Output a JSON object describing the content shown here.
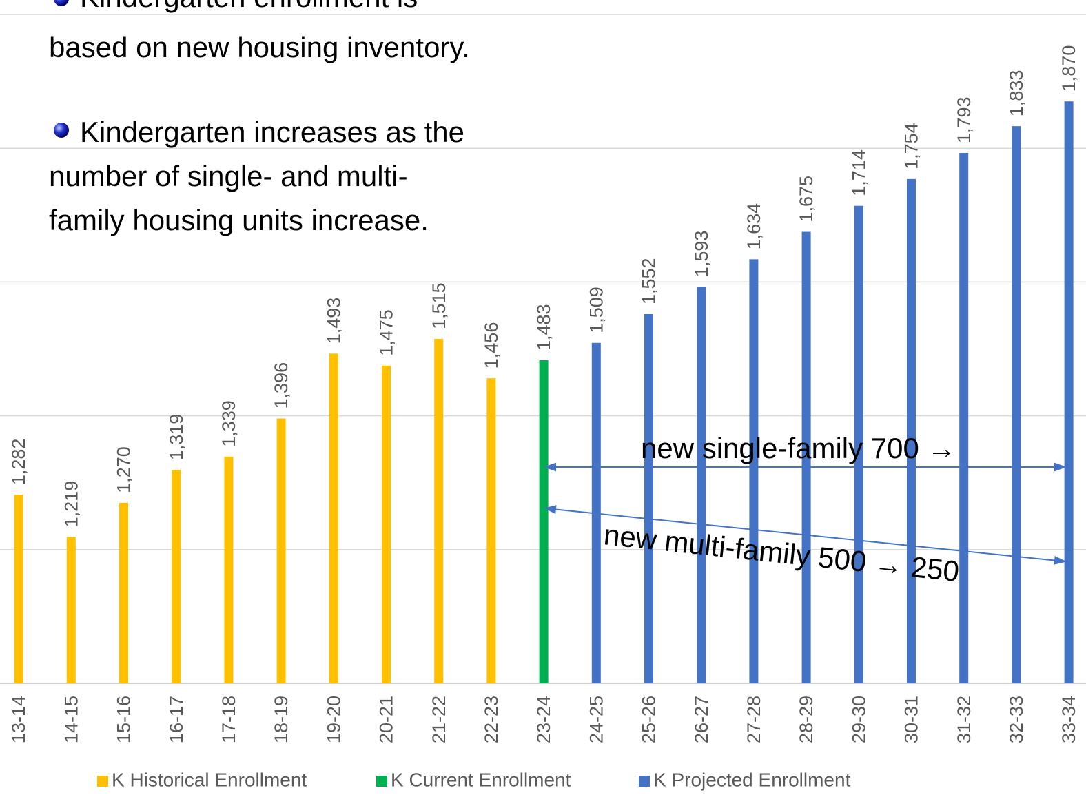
{
  "chart_data": {
    "type": "bar",
    "text_block": {
      "bullets": [
        {
          "lines": [
            "Kindergarten enrollment is",
            "based on new housing inventory."
          ]
        },
        {
          "lines": [
            "Kindergarten increases as the",
            "number of single- and multi-",
            "family housing units increase."
          ]
        }
      ]
    },
    "annotations": [
      "new single-family   700 →",
      "new multi-family 500 →  250"
    ],
    "categories": [
      "13-14",
      "14-15",
      "15-16",
      "16-17",
      "17-18",
      "18-19",
      "19-20",
      "20-21",
      "21-22",
      "22-23",
      "23-24",
      "24-25",
      "25-26",
      "26-27",
      "27-28",
      "28-29",
      "29-30",
      "30-31",
      "31-32",
      "32-33",
      "33-34"
    ],
    "series": [
      {
        "name": "K Historical Enrollment",
        "color": "#FFC000",
        "values": [
          1282,
          1219,
          1270,
          1319,
          1339,
          1396,
          1493,
          1475,
          1515,
          1456,
          null,
          null,
          null,
          null,
          null,
          null,
          null,
          null,
          null,
          null,
          null
        ],
        "value_labels": [
          "1,282",
          "1,219",
          "1,270",
          "1,319",
          "1,339",
          "1,396",
          "1,493",
          "1,475",
          "1,515",
          "1,456",
          null,
          null,
          null,
          null,
          null,
          null,
          null,
          null,
          null,
          null,
          null
        ]
      },
      {
        "name": "K Current Enrollment",
        "color": "#00B050",
        "values": [
          null,
          null,
          null,
          null,
          null,
          null,
          null,
          null,
          null,
          null,
          1483,
          null,
          null,
          null,
          null,
          null,
          null,
          null,
          null,
          null,
          null
        ],
        "value_labels": [
          null,
          null,
          null,
          null,
          null,
          null,
          null,
          null,
          null,
          null,
          "1,483",
          null,
          null,
          null,
          null,
          null,
          null,
          null,
          null,
          null,
          null
        ]
      },
      {
        "name": "K Projected Enrollment",
        "color": "#4472C4",
        "values": [
          null,
          null,
          null,
          null,
          null,
          null,
          null,
          null,
          null,
          null,
          null,
          1509,
          1552,
          1593,
          1634,
          1675,
          1714,
          1754,
          1793,
          1833,
          1870
        ],
        "value_labels": [
          null,
          null,
          null,
          null,
          null,
          null,
          null,
          null,
          null,
          null,
          null,
          "1,509",
          "1,552",
          "1,593",
          "1,634",
          "1,675",
          "1,714",
          "1,754",
          "1,793",
          "1,833",
          "1,870"
        ]
      }
    ],
    "ylim": [
      1000,
      2000
    ],
    "yticks": [
      1000,
      1200,
      1400,
      1600,
      1800,
      2000
    ],
    "grid": true
  }
}
